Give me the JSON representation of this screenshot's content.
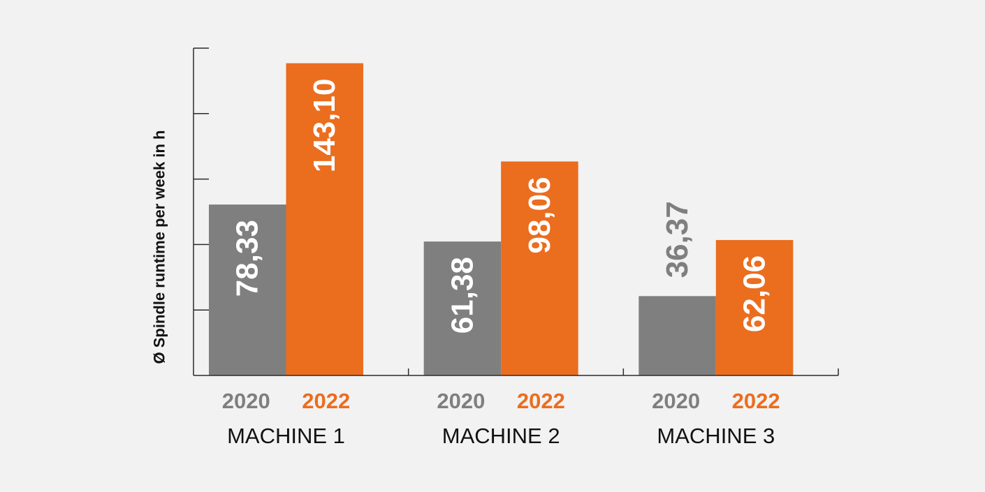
{
  "colors": {
    "background": "#f2f2f2",
    "series_2020": "#7f7f7f",
    "series_2022": "#eb6d1e",
    "axis": "#2b2b2b",
    "inside_label": "#ffffff",
    "category_label": "#111111"
  },
  "chart_data": {
    "type": "bar",
    "ylabel": "Ø Spindle runtime per week in h",
    "ylim": [
      0,
      150
    ],
    "y_tick_step": 30,
    "grid": false,
    "categories": [
      "MACHINE 1",
      "MACHINE 2",
      "MACHINE 3"
    ],
    "series": [
      {
        "name": "2020",
        "values": [
          78.33,
          61.38,
          36.37
        ],
        "data_labels": [
          "78,33",
          "61,38",
          "36,37"
        ]
      },
      {
        "name": "2022",
        "values": [
          143.1,
          98.06,
          62.06
        ],
        "data_labels": [
          "143,10",
          "98,06",
          "62,06"
        ]
      }
    ]
  }
}
